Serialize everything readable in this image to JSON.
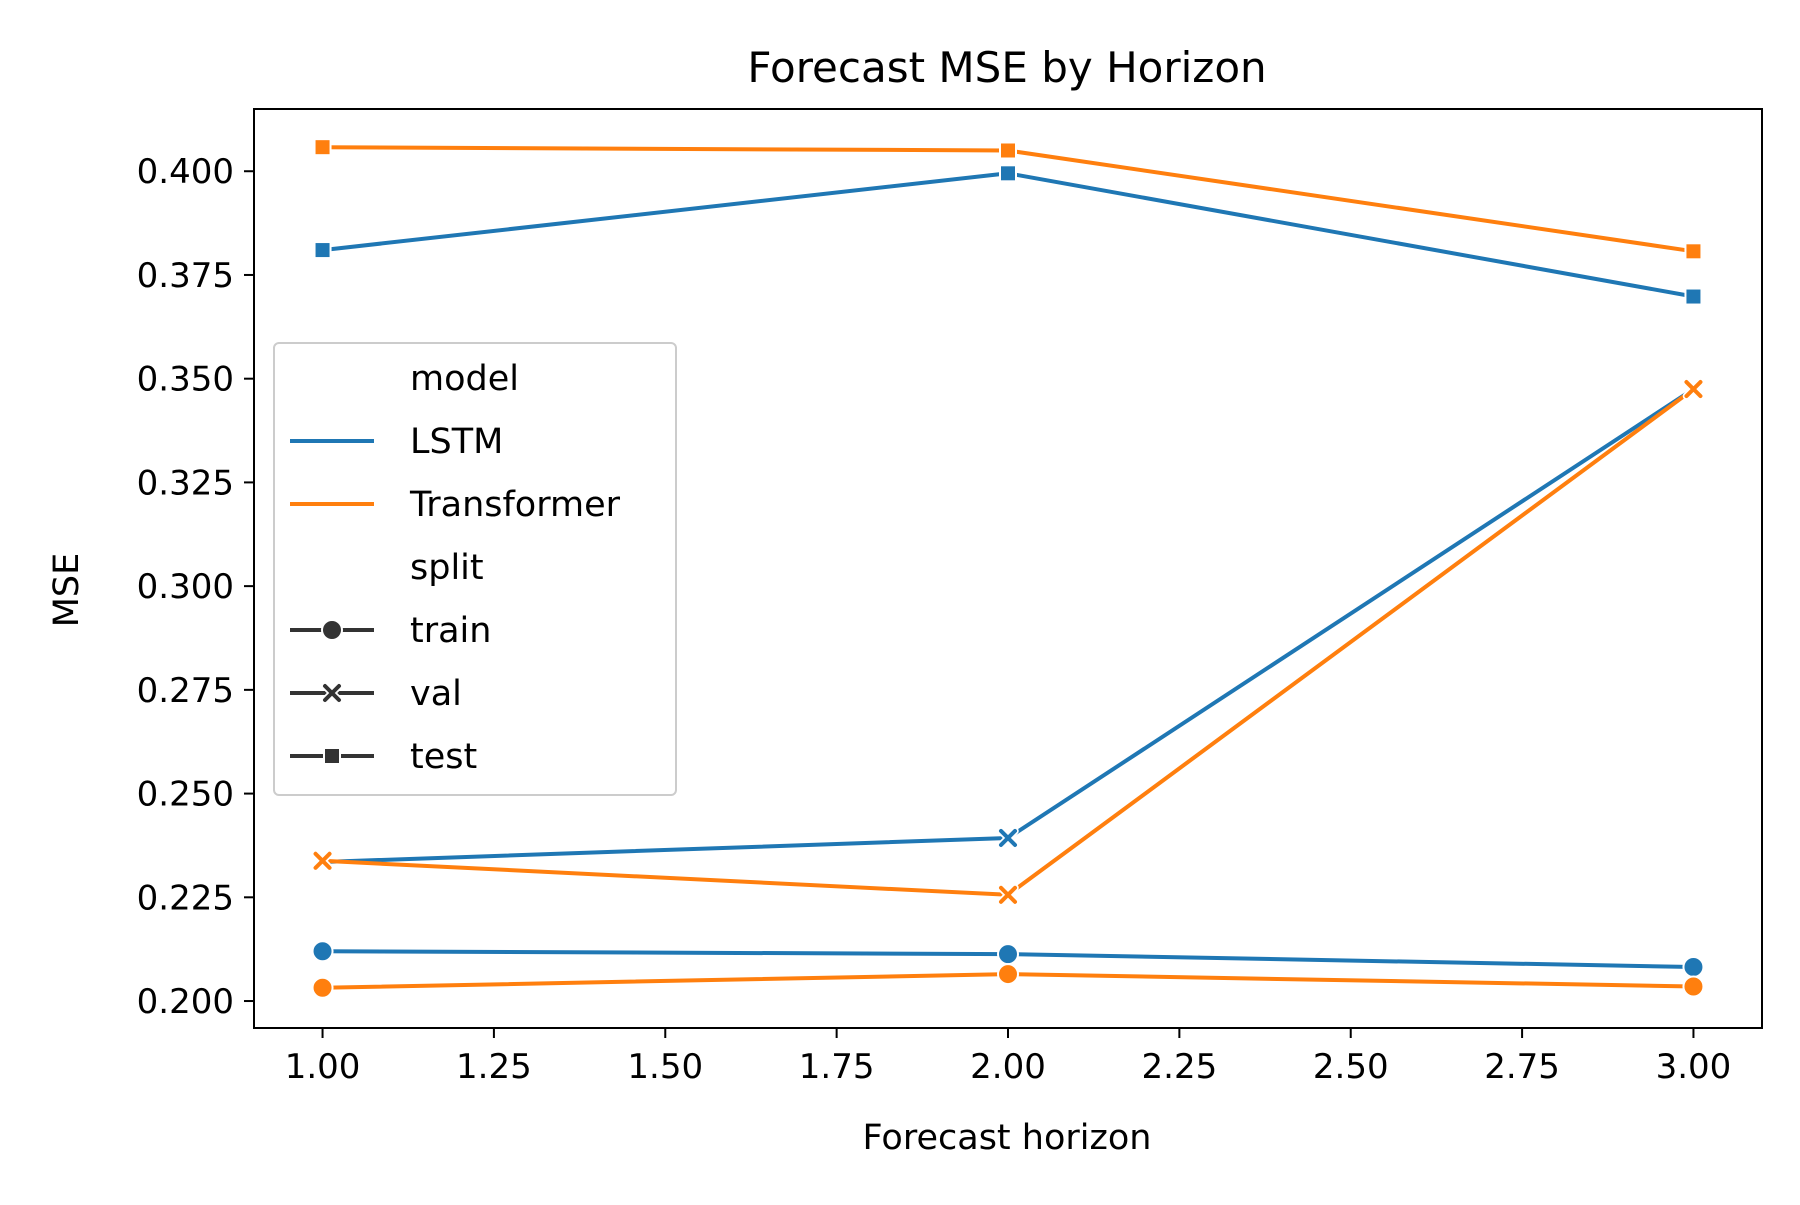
{
  "chart_data": {
    "type": "line",
    "title": "Forecast MSE by Horizon",
    "xlabel": "Forecast horizon",
    "ylabel": "MSE",
    "x": [
      1,
      2,
      3
    ],
    "xlim": [
      0.9,
      3.1
    ],
    "ylim": [
      0.1935,
      0.415
    ],
    "xticks": [
      1.0,
      1.25,
      1.5,
      1.75,
      2.0,
      2.25,
      2.5,
      2.75,
      3.0
    ],
    "xtick_labels": [
      "1.00",
      "1.25",
      "1.50",
      "1.75",
      "2.00",
      "2.25",
      "2.50",
      "2.75",
      "3.00"
    ],
    "yticks": [
      0.2,
      0.225,
      0.25,
      0.275,
      0.3,
      0.325,
      0.35,
      0.375,
      0.4
    ],
    "ytick_labels": [
      "0.200",
      "0.225",
      "0.250",
      "0.275",
      "0.300",
      "0.325",
      "0.350",
      "0.375",
      "0.400"
    ],
    "grid": false,
    "legend_position": "center-left",
    "colors": {
      "LSTM": "#1f77b4",
      "Transformer": "#ff7f0e",
      "legend_marker": "#333333"
    },
    "legend": {
      "model_title": "model",
      "models": [
        "LSTM",
        "Transformer"
      ],
      "split_title": "split",
      "splits": [
        "train",
        "val",
        "test"
      ],
      "markers": {
        "train": "circle",
        "val": "x",
        "test": "square"
      }
    },
    "series": [
      {
        "model": "LSTM",
        "split": "train",
        "values": [
          0.212,
          0.2113,
          0.2082
        ]
      },
      {
        "model": "Transformer",
        "split": "train",
        "values": [
          0.2032,
          0.2065,
          0.2035
        ]
      },
      {
        "model": "LSTM",
        "split": "val",
        "values": [
          0.2335,
          0.2393,
          0.3475
        ]
      },
      {
        "model": "Transformer",
        "split": "val",
        "values": [
          0.2338,
          0.2256,
          0.3475
        ]
      },
      {
        "model": "LSTM",
        "split": "test",
        "values": [
          0.381,
          0.3995,
          0.3698
        ]
      },
      {
        "model": "Transformer",
        "split": "test",
        "values": [
          0.4058,
          0.405,
          0.3807
        ]
      }
    ]
  }
}
